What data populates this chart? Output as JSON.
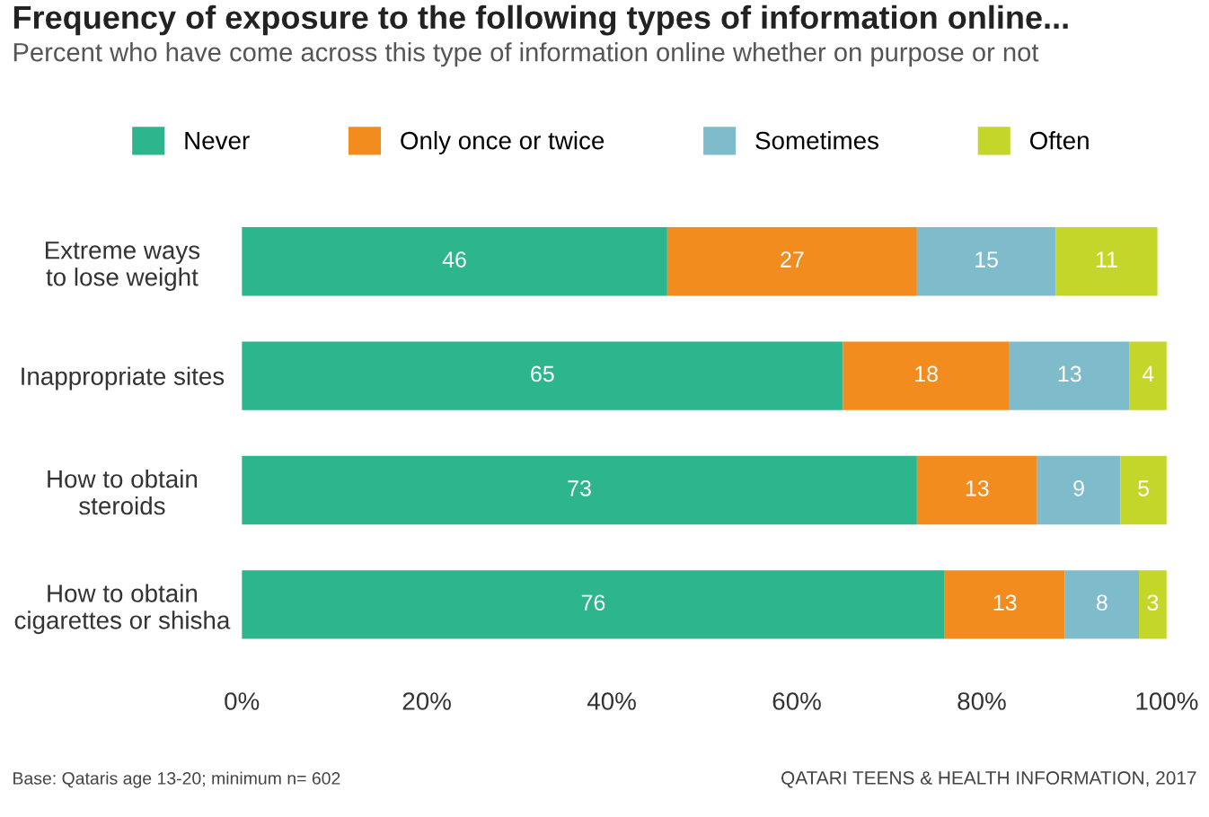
{
  "chart_data": {
    "type": "bar",
    "orientation": "horizontal",
    "stacked": true,
    "data_labels": true,
    "legend": "top",
    "grid": false,
    "title": "Frequency of exposure to the following types of information online...",
    "subtitle": "Percent who have come across this type of information online whether on purpose or not",
    "categories": [
      "Extreme ways\nto lose weight",
      "Inappropriate sites",
      "How to obtain\nsteroids",
      "How to obtain\ncigarettes or shisha"
    ],
    "series": [
      {
        "name": "Never",
        "color": "#2db58e",
        "values": [
          46,
          65,
          73,
          76
        ]
      },
      {
        "name": "Only once or twice",
        "color": "#f28c1e",
        "values": [
          27,
          18,
          13,
          13
        ]
      },
      {
        "name": "Sometimes",
        "color": "#7fbccb",
        "values": [
          15,
          13,
          9,
          8
        ]
      },
      {
        "name": "Often",
        "color": "#c5d62a",
        "values": [
          11,
          4,
          5,
          3
        ]
      }
    ],
    "xlim": [
      0,
      100
    ],
    "xticks": [
      {
        "value": 0,
        "label": "0%"
      },
      {
        "value": 20,
        "label": "20%"
      },
      {
        "value": 40,
        "label": "40%"
      },
      {
        "value": 60,
        "label": "60%"
      },
      {
        "value": 80,
        "label": "80%"
      },
      {
        "value": 100,
        "label": "100%"
      }
    ],
    "annotations": [
      "Base: Qataris age 13-20; minimum n= 602",
      "QATARI TEENS & HEALTH INFORMATION, 2017"
    ]
  }
}
